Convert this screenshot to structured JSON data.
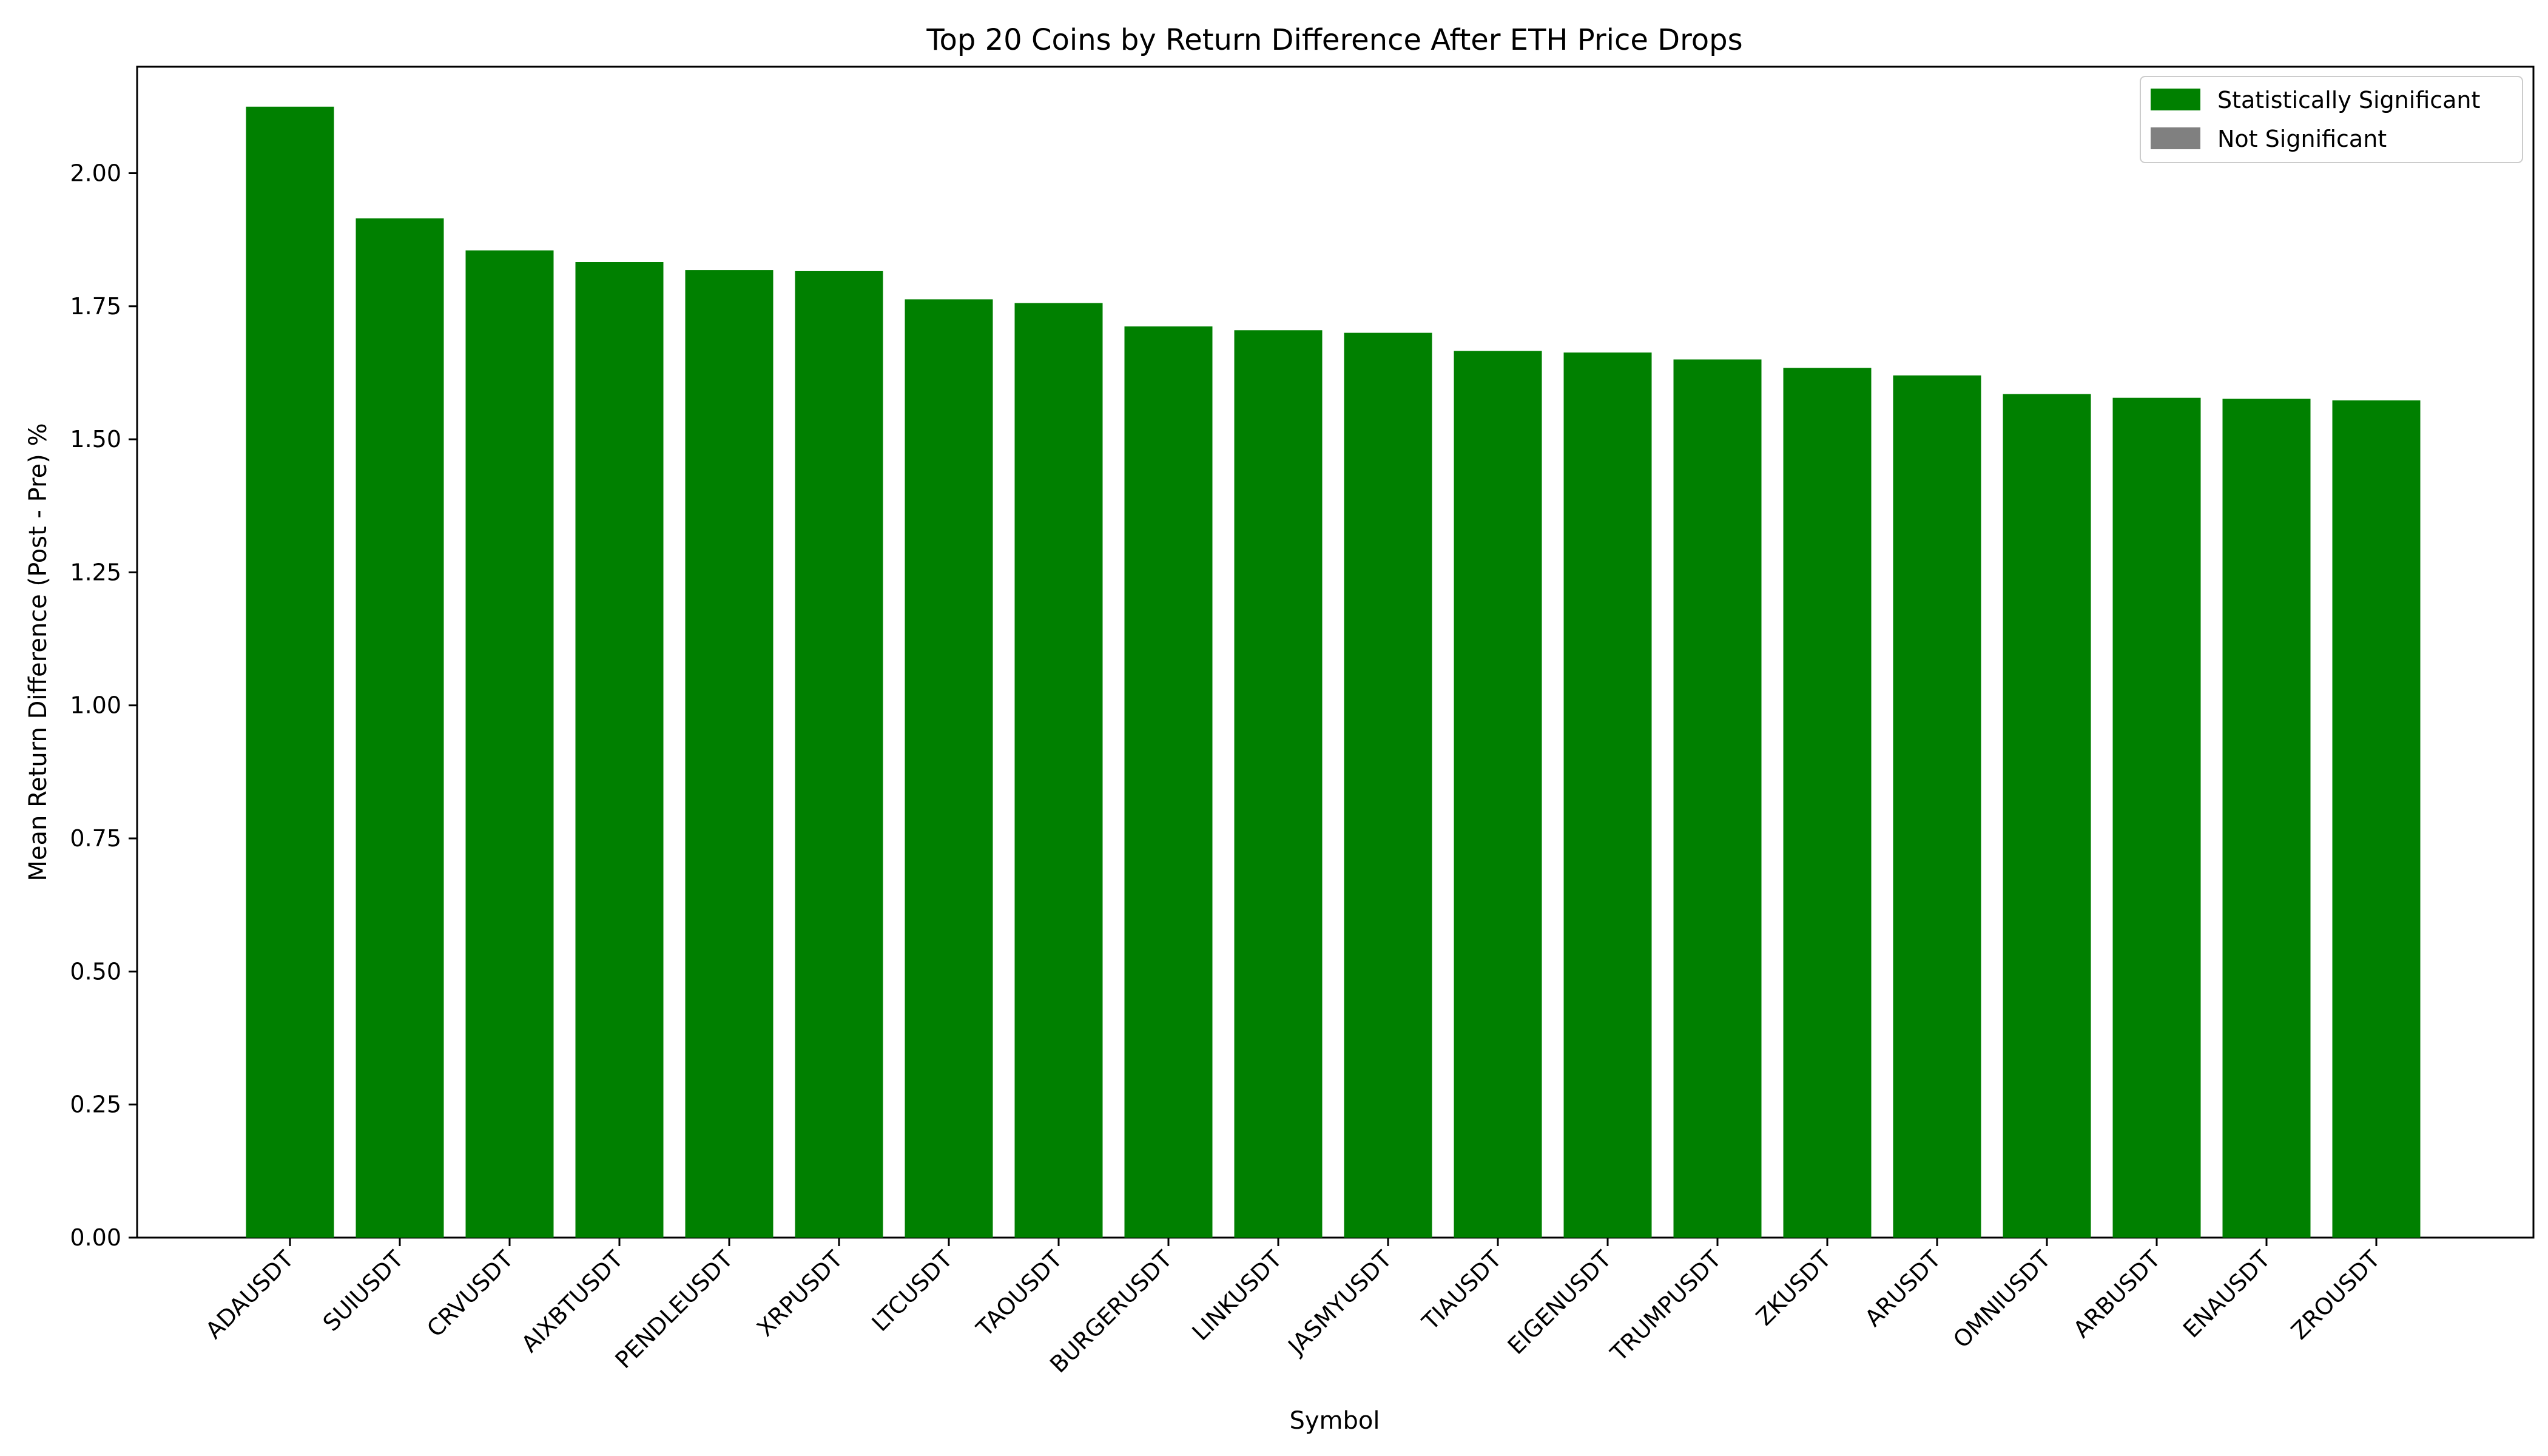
{
  "chart_data": {
    "type": "bar",
    "title": "Top 20 Coins by Return Difference After ETH Price Drops",
    "xlabel": "Symbol",
    "ylabel": "Mean Return Difference (Post - Pre) %",
    "ylim": [
      0,
      2.2
    ],
    "yticks": [
      "0.00",
      "0.25",
      "0.50",
      "0.75",
      "1.00",
      "1.25",
      "1.50",
      "1.75",
      "2.00"
    ],
    "categories": [
      "ADAUSDT",
      "SUIUSDT",
      "CRVUSDT",
      "AIXBTUSDT",
      "PENDLEUSDT",
      "XRPUSDT",
      "LTCUSDT",
      "TAOUSDT",
      "BURGERUSDT",
      "LINKUSDT",
      "JASMYUSDT",
      "TIAUSDT",
      "EIGENUSDT",
      "TRUMPUSDT",
      "ZKUSDT",
      "ARUSDT",
      "OMNIUSDT",
      "ARBUSDT",
      "ENAUSDT",
      "ZROUSDT"
    ],
    "values": [
      2.125,
      1.915,
      1.855,
      1.833,
      1.818,
      1.816,
      1.763,
      1.756,
      1.712,
      1.705,
      1.7,
      1.666,
      1.663,
      1.65,
      1.634,
      1.62,
      1.585,
      1.578,
      1.576,
      1.573
    ],
    "significant": [
      true,
      true,
      true,
      true,
      true,
      true,
      true,
      true,
      true,
      true,
      true,
      true,
      true,
      true,
      true,
      true,
      true,
      true,
      true,
      true
    ],
    "legend": {
      "position": "top-right",
      "entries": [
        {
          "label": "Statistically Significant",
          "color": "#008000"
        },
        {
          "label": "Not Significant",
          "color": "#808080"
        }
      ]
    },
    "colors": {
      "significant": "#008000",
      "not_significant": "#808080"
    },
    "grid": false
  }
}
